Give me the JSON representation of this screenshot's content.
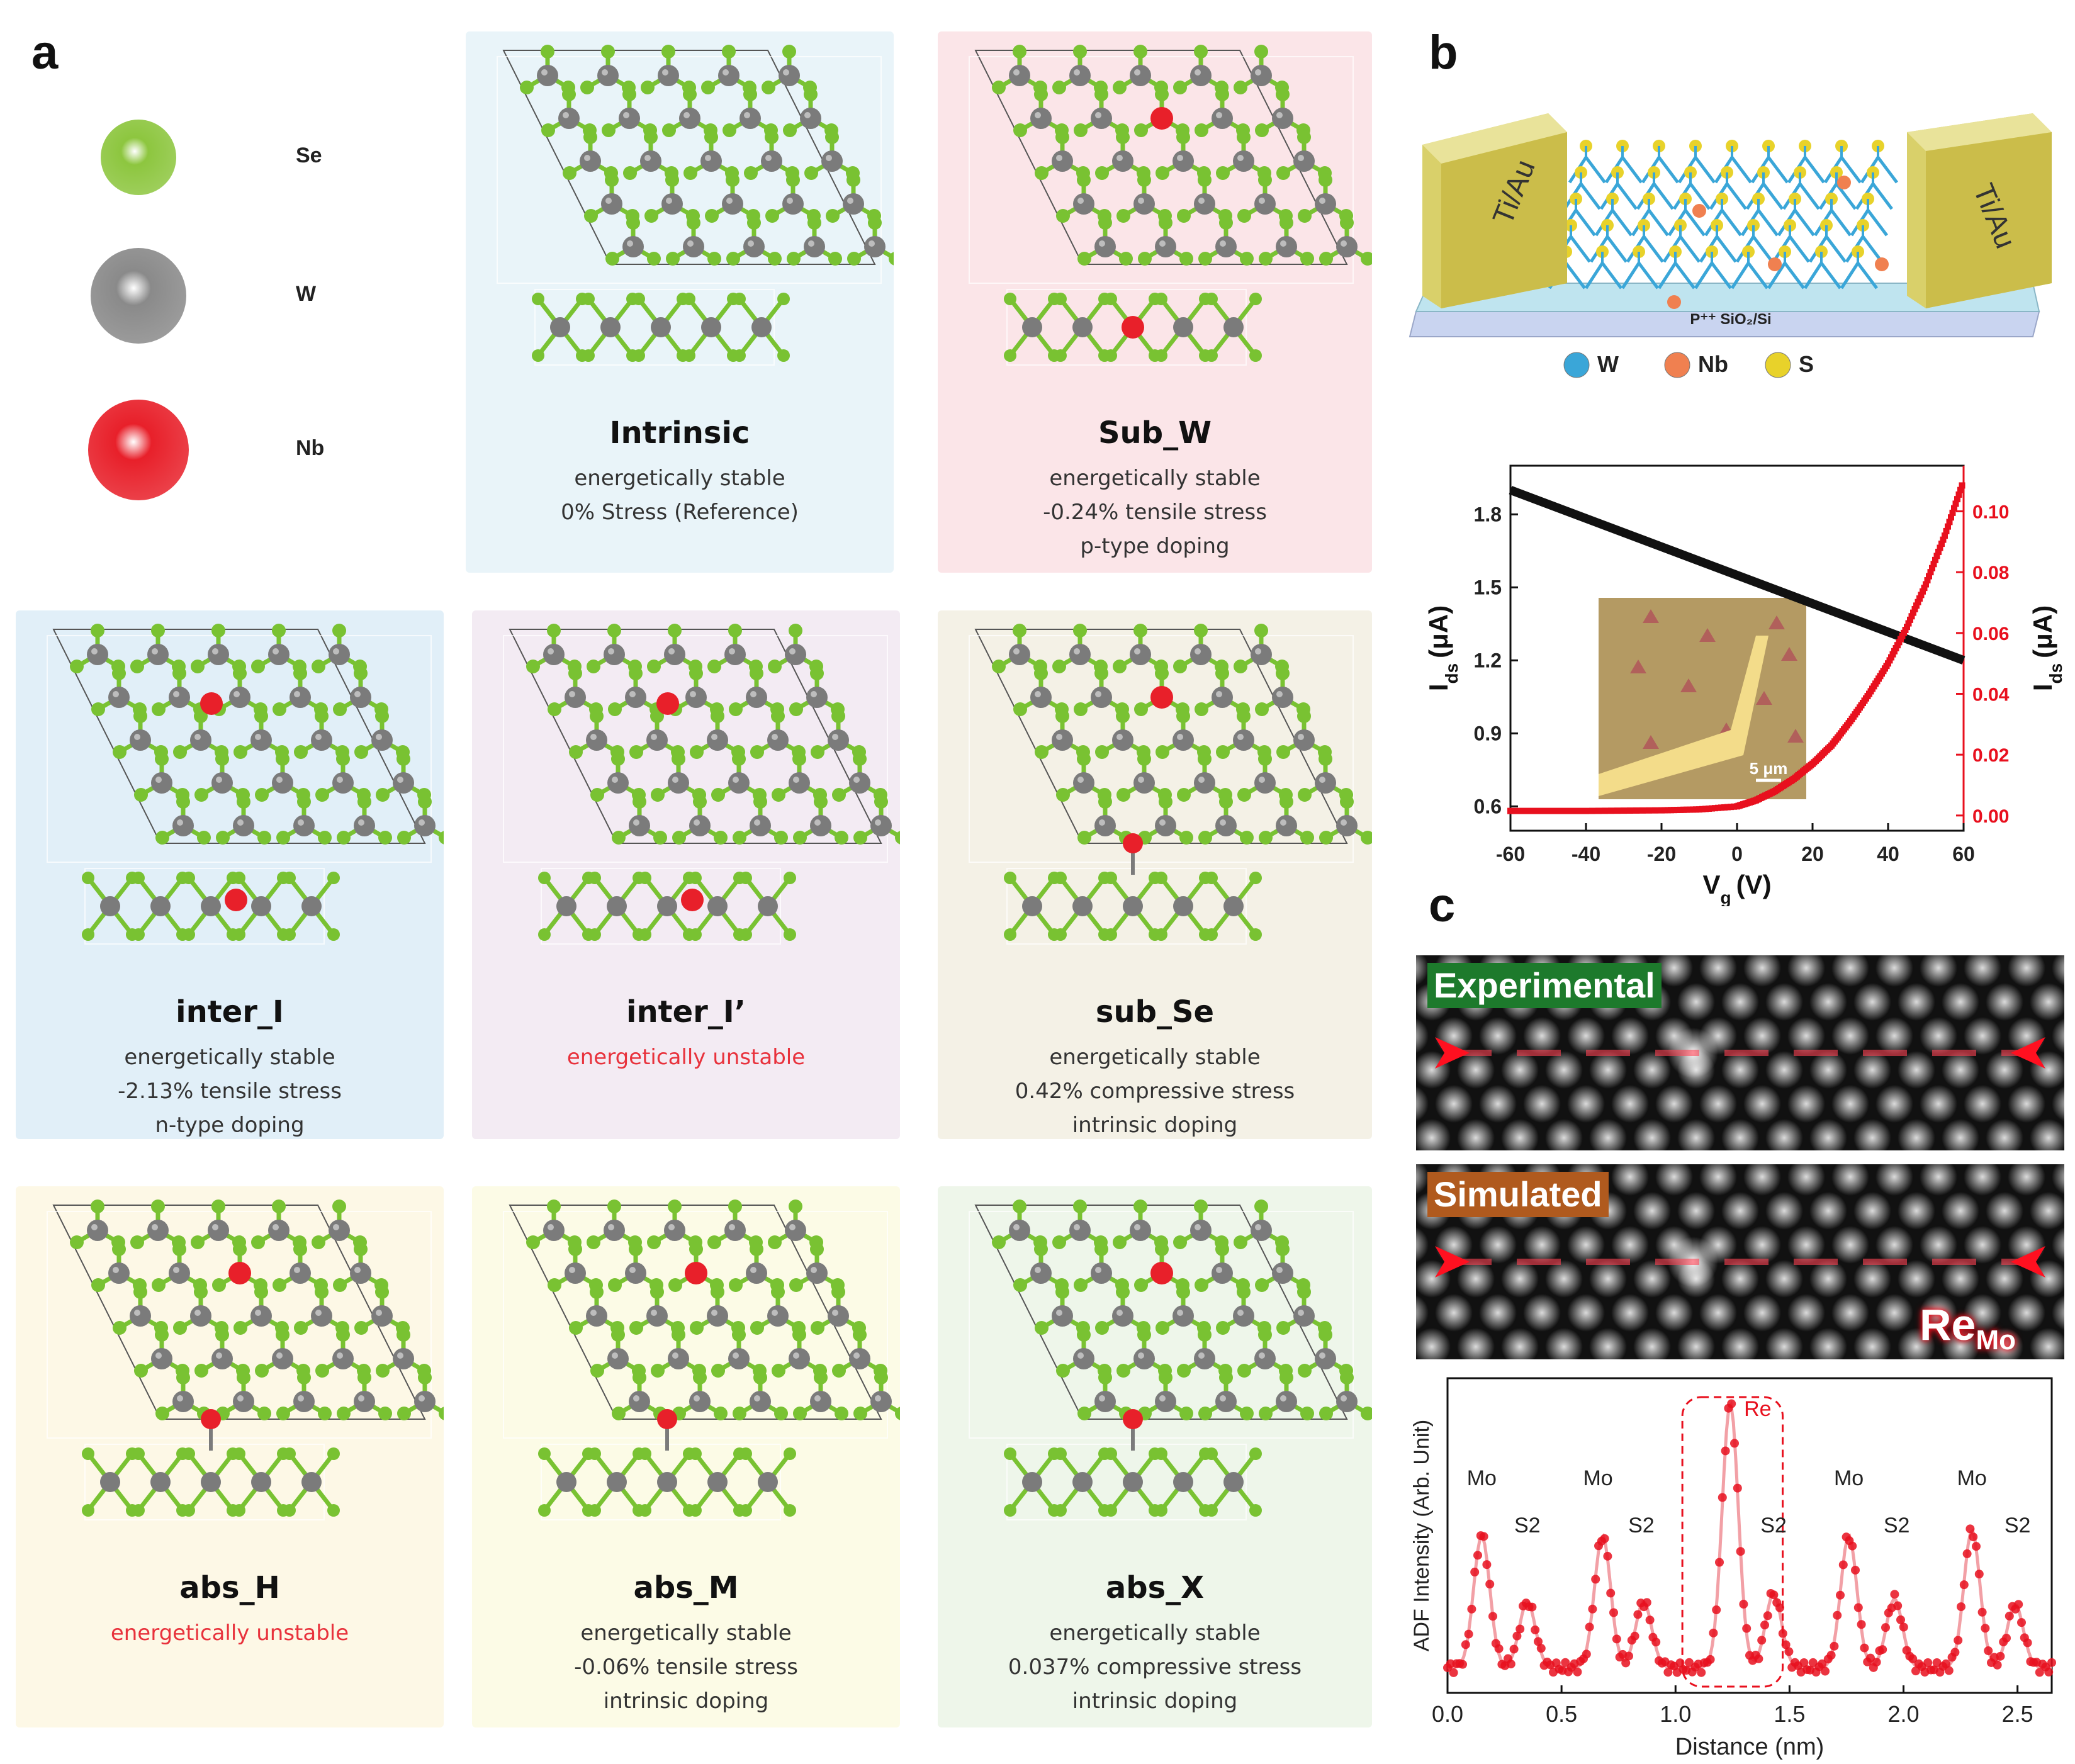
{
  "panel_labels": {
    "a": "a",
    "b": "b",
    "c": "c"
  },
  "legend": [
    {
      "element": "Se",
      "color": "#8dc63f"
    },
    {
      "element": "W",
      "color": "#8a8a8a"
    },
    {
      "element": "Nb",
      "color": "#e8202a"
    }
  ],
  "structures": [
    {
      "title": "Intrinsic",
      "lines": [
        "energetically stable",
        "0% Stress (Reference)"
      ],
      "red_line": null,
      "bg": "#e9f4f9",
      "dopant": "none"
    },
    {
      "title": "Sub_W",
      "lines": [
        "energetically stable",
        "-0.24% tensile stress",
        "p-type doping"
      ],
      "red_line": null,
      "bg": "#fbe5e8",
      "dopant": "sub"
    },
    {
      "title": "inter_I",
      "lines": [
        "energetically stable",
        "-2.13% tensile stress",
        "n-type doping"
      ],
      "red_line": null,
      "bg": "#e1eff8",
      "dopant": "inter"
    },
    {
      "title": "inter_I’",
      "lines": [],
      "red_line": "energetically unstable",
      "bg": "#f3ebf3",
      "dopant": "inter"
    },
    {
      "title": "sub_Se",
      "lines": [
        "energetically stable",
        "0.42% compressive stress",
        "intrinsic doping"
      ],
      "red_line": null,
      "bg": "#f4f1e6",
      "dopant": "top"
    },
    {
      "title": "abs_H",
      "lines": [],
      "red_line": "energetically unstable",
      "bg": "#fdf8e6",
      "dopant": "top"
    },
    {
      "title": "abs_M",
      "lines": [
        "energetically stable",
        "-0.06% tensile stress",
        "intrinsic doping"
      ],
      "red_line": null,
      "bg": "#fcfbe6",
      "dopant": "top"
    },
    {
      "title": "abs_X",
      "lines": [
        "energetically stable",
        "0.037% compressive stress",
        "intrinsic doping"
      ],
      "red_line": null,
      "bg": "#eef6ea",
      "dopant": "top"
    }
  ],
  "device": {
    "left_contact": "Ti/Au",
    "right_contact": "Ti/Au",
    "substrate_label": "P⁺⁺ SiO₂/Si",
    "legend": [
      {
        "element": "W",
        "color": "#3aa6d8"
      },
      {
        "element": "Nb",
        "color": "#f08050"
      },
      {
        "element": "S",
        "color": "#e8d22a"
      }
    ]
  },
  "transfer_chart": {
    "type": "line",
    "xlabel": "V",
    "xlabel_sub": "g",
    "xlabel_unit": "(V)",
    "ylabel_left": "I",
    "ylabel_left_sub": "ds",
    "ylabel_left_unit": "(μA)",
    "ylabel_right": "I",
    "ylabel_right_sub": "ds",
    "ylabel_right_unit": "(μA)",
    "xlim": [
      -60,
      60
    ],
    "ylim_left": [
      0.5,
      2.0
    ],
    "ylim_right": [
      -0.005,
      0.115
    ],
    "x_ticks": [
      -60,
      -40,
      -20,
      0,
      20,
      40,
      60
    ],
    "y_left_ticks": [
      "0.6",
      "0.9",
      "1.2",
      "1.5",
      "1.8"
    ],
    "y_left_tick_values": [
      0.6,
      0.9,
      1.2,
      1.5,
      1.8
    ],
    "y_right_ticks": [
      "0.00",
      "0.02",
      "0.04",
      "0.06",
      "0.08",
      "0.10"
    ],
    "y_right_tick_values": [
      0,
      0.02,
      0.04,
      0.06,
      0.08,
      0.1
    ],
    "series": [
      {
        "axis": "left",
        "color": "#111111",
        "x": [
          -60,
          60
        ],
        "y": [
          1.9,
          1.2
        ]
      },
      {
        "axis": "right",
        "color": "#e8101e",
        "x": [
          -60,
          -40,
          -20,
          -10,
          0,
          5,
          10,
          15,
          20,
          25,
          30,
          35,
          40,
          45,
          50,
          55,
          60
        ],
        "y": [
          0.0015,
          0.0015,
          0.0017,
          0.002,
          0.003,
          0.005,
          0.008,
          0.012,
          0.017,
          0.023,
          0.031,
          0.04,
          0.05,
          0.062,
          0.076,
          0.092,
          0.11
        ]
      }
    ],
    "inset_scale": "5 μm"
  },
  "stem": {
    "experimental_label": "Experimental",
    "simulated_label": "Simulated",
    "dopant_label": "Re",
    "dopant_label_sub": "Mo"
  },
  "profile_chart": {
    "type": "scatter",
    "xlabel": "Distance (nm)",
    "ylabel": "ADF Intensity (Arb. Unit)",
    "xlim": [
      0,
      2.65
    ],
    "x_ticks": [
      "0.0",
      "0.5",
      "1.0",
      "1.5",
      "2.0",
      "2.5"
    ],
    "x_tick_values": [
      0,
      0.5,
      1.0,
      1.5,
      2.0,
      2.5
    ],
    "annotations": [
      {
        "text": "Mo",
        "x": 0.15
      },
      {
        "text": "S2",
        "x": 0.35
      },
      {
        "text": "Mo",
        "x": 0.66
      },
      {
        "text": "S2",
        "x": 0.85
      },
      {
        "text": "Re",
        "x": 1.25
      },
      {
        "text": "S2",
        "x": 1.43
      },
      {
        "text": "Mo",
        "x": 1.76
      },
      {
        "text": "S2",
        "x": 1.97
      },
      {
        "text": "Mo",
        "x": 2.3
      },
      {
        "text": "S2",
        "x": 2.5
      }
    ],
    "peaks": [
      {
        "x": 0.15,
        "height": 0.5
      },
      {
        "x": 0.35,
        "height": 0.25
      },
      {
        "x": 0.68,
        "height": 0.5
      },
      {
        "x": 0.86,
        "height": 0.25
      },
      {
        "x": 1.24,
        "height": 1.0
      },
      {
        "x": 1.43,
        "height": 0.28
      },
      {
        "x": 1.76,
        "height": 0.5
      },
      {
        "x": 1.96,
        "height": 0.26
      },
      {
        "x": 2.3,
        "height": 0.52
      },
      {
        "x": 2.49,
        "height": 0.24
      }
    ],
    "color": "#e8101e"
  }
}
